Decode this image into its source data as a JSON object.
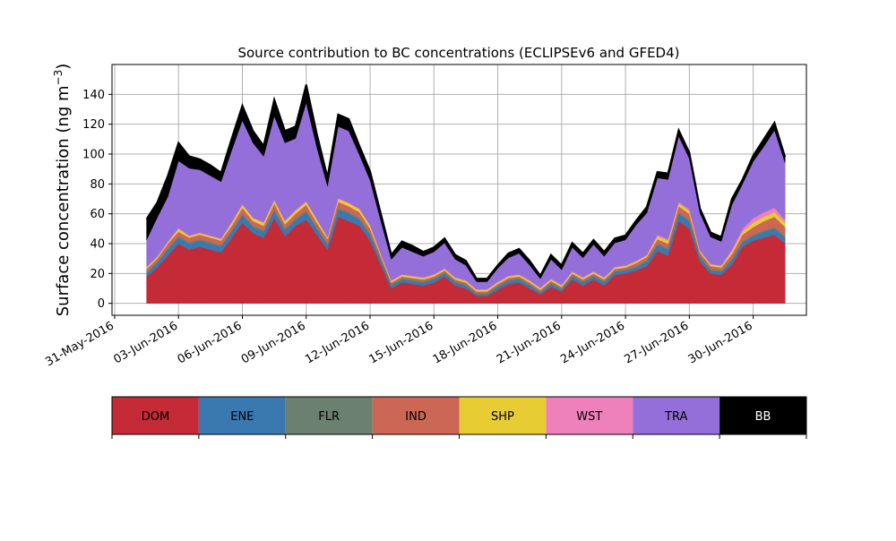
{
  "chart_data": {
    "type": "area",
    "title": "Source contribution to BC concentrations (ECLIPSEv6 and GFED4)",
    "ylabel_text": "Surface concentration (ng m",
    "ylabel_sup": "−3",
    "ylabel_close": ")",
    "xlabel": "",
    "ylim": [
      -8,
      160
    ],
    "yticks": [
      0,
      20,
      40,
      60,
      80,
      100,
      120,
      140
    ],
    "xlim": [
      "2016-05-30T21:00",
      "2016-07-02T12:00"
    ],
    "xticks": [
      {
        "date": "2016-05-31",
        "label": "31-May-2016"
      },
      {
        "date": "2016-06-03",
        "label": "03-Jun-2016"
      },
      {
        "date": "2016-06-06",
        "label": "06-Jun-2016"
      },
      {
        "date": "2016-06-09",
        "label": "09-Jun-2016"
      },
      {
        "date": "2016-06-12",
        "label": "12-Jun-2016"
      },
      {
        "date": "2016-06-15",
        "label": "15-Jun-2016"
      },
      {
        "date": "2016-06-18",
        "label": "18-Jun-2016"
      },
      {
        "date": "2016-06-21",
        "label": "21-Jun-2016"
      },
      {
        "date": "2016-06-24",
        "label": "24-Jun-2016"
      },
      {
        "date": "2016-06-27",
        "label": "27-Jun-2016"
      },
      {
        "date": "2016-06-30",
        "label": "30-Jun-2016"
      }
    ],
    "grid": true,
    "stacked": true,
    "x": [
      "2016-06-01T12:00",
      "2016-06-02T00:00",
      "2016-06-02T12:00",
      "2016-06-03T00:00",
      "2016-06-03T12:00",
      "2016-06-04T00:00",
      "2016-06-04T12:00",
      "2016-06-05T00:00",
      "2016-06-05T12:00",
      "2016-06-06T00:00",
      "2016-06-06T12:00",
      "2016-06-07T00:00",
      "2016-06-07T12:00",
      "2016-06-08T00:00",
      "2016-06-08T12:00",
      "2016-06-09T00:00",
      "2016-06-09T12:00",
      "2016-06-10T00:00",
      "2016-06-10T12:00",
      "2016-06-11T00:00",
      "2016-06-11T12:00",
      "2016-06-12T00:00",
      "2016-06-12T12:00",
      "2016-06-13T00:00",
      "2016-06-13T12:00",
      "2016-06-14T00:00",
      "2016-06-14T12:00",
      "2016-06-15T00:00",
      "2016-06-15T12:00",
      "2016-06-16T00:00",
      "2016-06-16T12:00",
      "2016-06-17T00:00",
      "2016-06-17T12:00",
      "2016-06-18T00:00",
      "2016-06-18T12:00",
      "2016-06-19T00:00",
      "2016-06-19T12:00",
      "2016-06-20T00:00",
      "2016-06-20T12:00",
      "2016-06-21T00:00",
      "2016-06-21T12:00",
      "2016-06-22T00:00",
      "2016-06-22T12:00",
      "2016-06-23T00:00",
      "2016-06-23T12:00",
      "2016-06-24T00:00",
      "2016-06-24T12:00",
      "2016-06-25T00:00",
      "2016-06-25T12:00",
      "2016-06-26T00:00",
      "2016-06-26T12:00",
      "2016-06-27T00:00",
      "2016-06-27T12:00",
      "2016-06-28T00:00",
      "2016-06-28T12:00",
      "2016-06-29T00:00",
      "2016-06-29T12:00",
      "2016-06-30T00:00",
      "2016-06-30T12:00",
      "2016-07-01T00:00",
      "2016-07-01T12:00"
    ],
    "series": [
      {
        "name": "DOM",
        "color": "#c42b36",
        "values": [
          18,
          24,
          32,
          40,
          36,
          38,
          36,
          34,
          44,
          54,
          47,
          44,
          57,
          45,
          52,
          56,
          46,
          36,
          58,
          55,
          52,
          42,
          26,
          10,
          14,
          13,
          12,
          14,
          18,
          12,
          10,
          5,
          5,
          9,
          13,
          14,
          10,
          6,
          11,
          8,
          16,
          12,
          16,
          12,
          19,
          20,
          22,
          25,
          35,
          32,
          55,
          50,
          28,
          20,
          19,
          26,
          38,
          42,
          44,
          46,
          40
        ]
      },
      {
        "name": "ENE",
        "color": "#3a78b0",
        "values": [
          2,
          3,
          4,
          4,
          4,
          4,
          4,
          4,
          4,
          5,
          4,
          4,
          5,
          4,
          4,
          5,
          4,
          3,
          5,
          5,
          4,
          4,
          3,
          2,
          2,
          2,
          2,
          2,
          2,
          2,
          2,
          1,
          1,
          2,
          2,
          2,
          2,
          1,
          2,
          1,
          2,
          2,
          2,
          2,
          2,
          2,
          2,
          3,
          4,
          4,
          5,
          5,
          3,
          2,
          2,
          3,
          3,
          3,
          4,
          4,
          4
        ]
      },
      {
        "name": "FLR",
        "color": "#6b806e",
        "values": [
          1,
          1,
          1,
          1,
          1,
          1,
          1,
          1,
          1,
          1,
          1,
          1,
          1,
          1,
          1,
          1,
          1,
          1,
          1,
          1,
          1,
          1,
          1,
          1,
          1,
          1,
          1,
          1,
          1,
          1,
          1,
          1,
          1,
          1,
          1,
          1,
          1,
          1,
          1,
          1,
          1,
          1,
          1,
          1,
          1,
          1,
          1,
          1,
          1,
          1,
          1,
          1,
          1,
          1,
          1,
          1,
          1,
          1,
          1,
          1,
          1
        ]
      },
      {
        "name": "IND",
        "color": "#cc6655",
        "values": [
          2,
          2,
          3,
          3,
          3,
          3,
          3,
          3,
          3,
          4,
          3,
          3,
          4,
          3,
          3,
          4,
          3,
          3,
          4,
          4,
          4,
          3,
          2,
          1,
          1,
          1,
          1,
          1,
          1,
          1,
          1,
          1,
          1,
          1,
          1,
          1,
          1,
          1,
          1,
          1,
          1,
          1,
          1,
          1,
          1,
          1,
          2,
          2,
          3,
          3,
          4,
          4,
          2,
          2,
          2,
          3,
          4,
          5,
          6,
          7,
          6
        ]
      },
      {
        "name": "SHP",
        "color": "#e8cc33",
        "values": [
          1,
          1,
          1,
          2,
          1,
          1,
          1,
          1,
          2,
          2,
          2,
          2,
          2,
          2,
          2,
          2,
          2,
          1,
          2,
          2,
          2,
          2,
          1,
          1,
          1,
          1,
          1,
          1,
          1,
          1,
          1,
          1,
          1,
          1,
          1,
          1,
          1,
          1,
          1,
          1,
          1,
          1,
          1,
          1,
          1,
          1,
          1,
          1,
          2,
          2,
          2,
          2,
          1,
          1,
          1,
          2,
          2,
          3,
          3,
          3,
          3
        ]
      },
      {
        "name": "WST",
        "color": "#ee80bb",
        "values": [
          0.5,
          0.5,
          0.5,
          0.5,
          0.5,
          0.5,
          0.5,
          0.5,
          0.5,
          0.5,
          0.5,
          0.5,
          0.5,
          0.5,
          0.5,
          0.5,
          0.5,
          0.5,
          0.5,
          0.5,
          0.5,
          0.5,
          0.5,
          0.5,
          0.5,
          0.5,
          0.5,
          0.5,
          0.5,
          0.5,
          0.5,
          0.5,
          0.5,
          0.5,
          0.5,
          0.5,
          0.5,
          0.5,
          0.5,
          0.5,
          0.5,
          0.5,
          0.5,
          0.5,
          0.5,
          0.5,
          0.5,
          0.5,
          1,
          1,
          1,
          1,
          0.5,
          0.5,
          0.5,
          1,
          2,
          3,
          3,
          3,
          2
        ]
      },
      {
        "name": "TRA",
        "color": "#946fd9",
        "values": [
          18,
          26,
          30,
          45,
          45,
          42,
          40,
          38,
          48,
          56,
          50,
          44,
          56,
          52,
          48,
          66,
          48,
          34,
          48,
          48,
          36,
          30,
          22,
          14,
          18,
          16,
          14,
          15,
          17,
          12,
          10,
          5,
          5,
          9,
          12,
          14,
          10,
          6,
          13,
          10,
          16,
          13,
          18,
          14,
          16,
          17,
          24,
          28,
          38,
          40,
          44,
          34,
          25,
          18,
          16,
          30,
          30,
          38,
          44,
          52,
          38
        ]
      },
      {
        "name": "BB",
        "color": "#000000",
        "values": [
          14,
          10,
          14,
          12,
          8,
          7,
          7,
          6,
          8,
          10,
          8,
          7,
          11,
          8,
          8,
          12,
          9,
          6,
          8,
          8,
          6,
          6,
          5,
          3,
          4,
          4,
          3,
          3,
          3,
          3,
          3,
          2,
          2,
          2,
          3,
          3,
          3,
          2,
          3,
          3,
          3,
          3,
          3,
          3,
          3,
          3,
          3,
          4,
          4,
          4,
          4,
          4,
          3,
          3,
          3,
          4,
          3,
          4,
          5,
          5,
          4
        ]
      }
    ]
  }
}
